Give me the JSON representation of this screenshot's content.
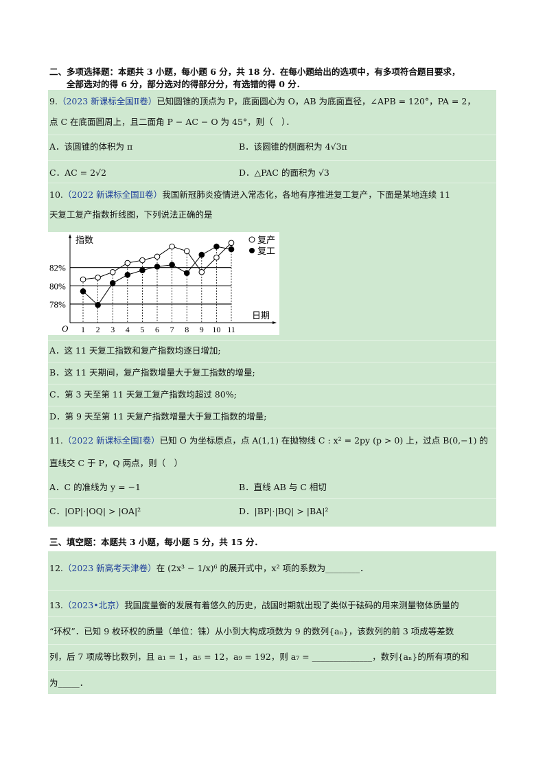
{
  "section2": {
    "line1": "二、多项选择题：本题共 3 小题，每小题 6 分，共 18 分．在每小题给出的选项中，有多项符合题目要求，",
    "line2": "全部选对的得 6 分，部分选对的得部分分，有选错的得 0 分．"
  },
  "q9": {
    "num": "9.",
    "source": "（2023 新课标全国Ⅱ卷）",
    "line1": "已知圆锥的顶点为 P，底面圆心为 O，AB 为底面直径，∠APB = 120°，PA = 2，",
    "line2": "点 C 在底面圆周上，且二面角 P − AC − O 为 45°，则（　）．",
    "options": [
      "A．该圆锥的体积为 π",
      "B．该圆锥的侧面积为 4√3π",
      "C．AC = 2√2",
      "D．△PAC 的面积为 √3"
    ]
  },
  "q10": {
    "num": "10.",
    "source": "（2022 新课标全国Ⅱ卷）",
    "line1": "我国新冠肺炎疫情进入常态化，各地有序推进复工复产，下面是某地连续 11",
    "line2": "天复工复产指数折线图，下列说法正确的是",
    "options": [
      "A．这 11 天复工指数和复产指数均逐日增加;",
      "B．这 11 天期间，复产指数增量大于复工指数的增量;",
      "C．第 3 天至第 11 天复工复产指数均超过 80%;",
      "D．第 9 天至第 11 天复产指数增量大于复工指数的增量;"
    ]
  },
  "chart_data": {
    "type": "line",
    "ylabel": "指数",
    "xlabel": "日期",
    "origin_label": "O",
    "x": [
      1,
      2,
      3,
      4,
      5,
      6,
      7,
      8,
      9,
      10,
      11
    ],
    "x_tick_labels": [
      "1",
      "2",
      "3",
      "4",
      "5",
      "6",
      "7",
      "8",
      "9",
      "10",
      "11"
    ],
    "y_tick_labels": [
      "78%",
      "80%",
      "82%"
    ],
    "y_ticks": [
      78,
      80,
      82
    ],
    "ylim": [
      76,
      85
    ],
    "legend_placement": "top-right",
    "series": [
      {
        "name": "复产",
        "marker": "open-circle",
        "values": [
          80.7,
          80.9,
          81.5,
          82.5,
          82.8,
          83.2,
          84.3,
          83.8,
          81.5,
          83.1,
          84.7
        ]
      },
      {
        "name": "复工",
        "marker": "filled-circle",
        "values": [
          79.4,
          77.9,
          80.3,
          81.2,
          81.7,
          82.1,
          82.3,
          81.4,
          83.4,
          84.3,
          84.0
        ]
      }
    ]
  },
  "q11": {
    "num": "11.",
    "source": "（2022 新课标全国Ⅰ卷）",
    "line1": "已知 O 为坐标原点，点 A(1,1) 在抛物线 C : x² = 2py (p > 0) 上，过点 B(0,−1) 的",
    "line2": "直线交 C 于 P，Q 两点，则（　）",
    "options": [
      "A．C 的准线为 y = −1",
      "B．直线 AB 与 C 相切",
      "C．|OP|·|OQ| > |OA|²",
      "D．|BP|·|BQ| > |BA|²"
    ]
  },
  "section3": {
    "line1": "三、填空题：本题共 3 小题，每小题 5 分，共 15 分．"
  },
  "q12": {
    "num": "12.",
    "source": "（2023 新高考天津卷）",
    "line1": "在 (2x³ − 1/x)⁶ 的展开式中，x² 项的系数为________．"
  },
  "q13": {
    "num": "13.",
    "source": "（2023•北京）",
    "line1": "我国度量衡的发展有着悠久的历史，战国时期就出现了类似于砝码的用来测量物体质量的",
    "line2": "“环权”．已知 9 枚环权的质量（单位：铢）从小到大构成项数为 9 的数列{aₙ}，该数列的前 3 项成等差数",
    "line3": "列，后 7 项成等比数列，且 a₁ = 1，a₅ = 12，a₉ = 192，则 a₇ = ______________，数列{aₙ}的所有项的和",
    "line4": "为_____．"
  },
  "colors": {
    "band": "#cfe8d0",
    "source": "#1f3f9a"
  }
}
